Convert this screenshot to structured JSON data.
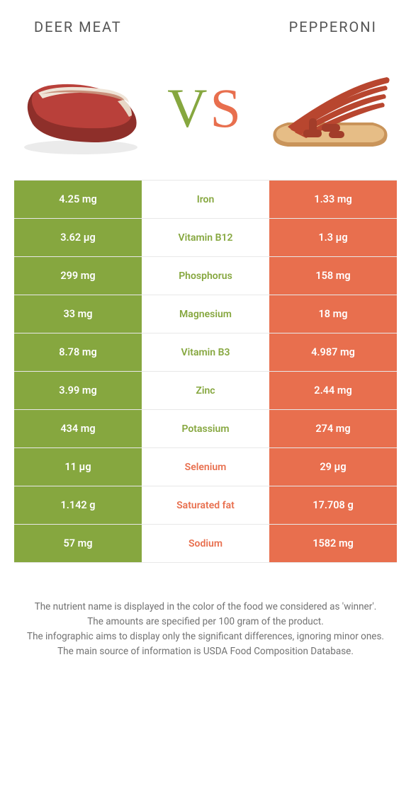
{
  "type": "infographic-comparison-table",
  "colors": {
    "green": "#86a73f",
    "orange": "#e86f4e",
    "background": "#ffffff",
    "text": "#3a3a3a",
    "muted": "#727272",
    "row_border": "#e8e8e8"
  },
  "typography": {
    "title_fontsize": 20,
    "title_letterspacing": 2,
    "vs_fontsize": 78,
    "cell_fontsize": 14.5,
    "nutrient_fontsize": 14,
    "footer_fontsize": 13.5
  },
  "titles": {
    "left": "DEER MEAT",
    "right": "PEPPERONI"
  },
  "vs": {
    "v": "V",
    "s": "S"
  },
  "rows": [
    {
      "left": "4.25 mg",
      "nutrient": "Iron",
      "right": "1.33 mg",
      "winner": "left"
    },
    {
      "left": "3.62 µg",
      "nutrient": "Vitamin B12",
      "right": "1.3 µg",
      "winner": "left"
    },
    {
      "left": "299 mg",
      "nutrient": "Phosphorus",
      "right": "158 mg",
      "winner": "left"
    },
    {
      "left": "33 mg",
      "nutrient": "Magnesium",
      "right": "18 mg",
      "winner": "left"
    },
    {
      "left": "8.78 mg",
      "nutrient": "Vitamin B3",
      "right": "4.987 mg",
      "winner": "left"
    },
    {
      "left": "3.99 mg",
      "nutrient": "Zinc",
      "right": "2.44 mg",
      "winner": "left"
    },
    {
      "left": "434 mg",
      "nutrient": "Potassium",
      "right": "274 mg",
      "winner": "left"
    },
    {
      "left": "11 µg",
      "nutrient": "Selenium",
      "right": "29 µg",
      "winner": "right"
    },
    {
      "left": "1.142 g",
      "nutrient": "Saturated fat",
      "right": "17.708 g",
      "winner": "right"
    },
    {
      "left": "57 mg",
      "nutrient": "Sodium",
      "right": "1582 mg",
      "winner": "right"
    }
  ],
  "footer": {
    "line1": "The nutrient name is displayed in the color of the food we considered as 'winner'.",
    "line2": "The amounts are specified per 100 gram of the product.",
    "line3": "The infographic aims to display only the significant differences, ignoring minor ones.",
    "line4": "The main source of information is USDA Food Composition Database."
  }
}
